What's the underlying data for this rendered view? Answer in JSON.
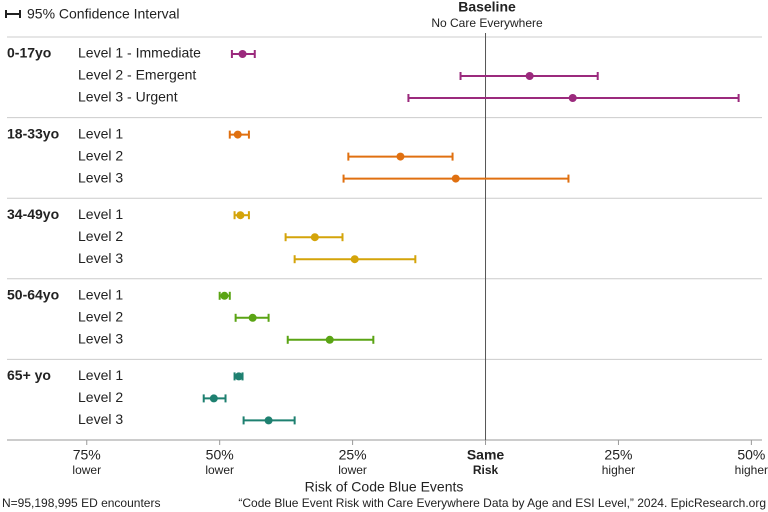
{
  "chart_data": {
    "type": "forest",
    "legend_label": "95% Confidence Interval",
    "baseline_title": "Baseline",
    "baseline_subtitle": "No Care Everywhere",
    "x_label": "Risk of Code Blue Events",
    "note": "N=95,198,995 ED encounters",
    "source": "“Code Blue Event Risk with Care Everywhere Data by Age and ESI Level,” 2024. EpicResearch.org",
    "xlim": [
      -90,
      52
    ],
    "xticks": [
      {
        "value": -75,
        "label": "75%",
        "sublabel": "lower"
      },
      {
        "value": -50,
        "label": "50%",
        "sublabel": "lower"
      },
      {
        "value": -25,
        "label": "25%",
        "sublabel": "lower"
      },
      {
        "value": 0,
        "label": "Same",
        "sublabel": "Risk"
      },
      {
        "value": 25,
        "label": "25%",
        "sublabel": "higher"
      },
      {
        "value": 50,
        "label": "50%",
        "sublabel": "higher"
      }
    ],
    "groups": [
      {
        "name": "0-17yo",
        "color": "#9b2a7d",
        "rows": [
          {
            "label": "Level 1 - Immediate",
            "value": -45.7,
            "lo": -47.7,
            "hi": -43.4
          },
          {
            "label": "Level 2 - Emergent",
            "value": 8.3,
            "lo": -4.7,
            "hi": 21.1
          },
          {
            "label": "Level 3 - Urgent",
            "value": 16.4,
            "lo": -14.5,
            "hi": 47.6
          }
        ]
      },
      {
        "name": "18-33yo",
        "color": "#e07010",
        "rows": [
          {
            "label": "Level 1",
            "value": -46.6,
            "lo": -48.1,
            "hi": -44.5
          },
          {
            "label": "Level 2",
            "value": -16.0,
            "lo": -25.8,
            "hi": -6.2
          },
          {
            "label": "Level 3",
            "value": -5.6,
            "lo": -26.7,
            "hi": 15.6
          }
        ]
      },
      {
        "name": "34-49yo",
        "color": "#d4a40a",
        "rows": [
          {
            "label": "Level 1",
            "value": -46.1,
            "lo": -47.2,
            "hi": -44.5
          },
          {
            "label": "Level 2",
            "value": -32.1,
            "lo": -37.6,
            "hi": -26.9
          },
          {
            "label": "Level 3",
            "value": -24.6,
            "lo": -35.9,
            "hi": -13.2
          }
        ]
      },
      {
        "name": "50-64yo",
        "color": "#5aa414",
        "rows": [
          {
            "label": "Level 1",
            "value": -49.1,
            "lo": -50.0,
            "hi": -48.1
          },
          {
            "label": "Level 2",
            "value": -43.8,
            "lo": -47.0,
            "hi": -40.8
          },
          {
            "label": "Level 3",
            "value": -29.3,
            "lo": -37.2,
            "hi": -21.1
          }
        ]
      },
      {
        "name": "65+ yo",
        "color": "#1e8070",
        "rows": [
          {
            "label": "Level 1",
            "value": -46.4,
            "lo": -47.2,
            "hi": -45.7
          },
          {
            "label": "Level 2",
            "value": -51.1,
            "lo": -53.0,
            "hi": -48.9
          },
          {
            "label": "Level 3",
            "value": -40.8,
            "lo": -45.5,
            "hi": -35.9
          }
        ]
      }
    ]
  }
}
